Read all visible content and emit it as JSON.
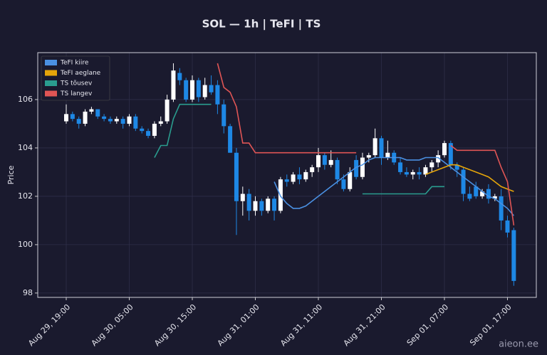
{
  "chart_data": {
    "type": "candlestick",
    "title": "SOL — 1h  |  TeFI  |  TS",
    "ylabel": "Price",
    "watermark": "aieon.ee",
    "categories": [
      "Aug 29, 19:00",
      "Aug 29, 20:00",
      "Aug 29, 21:00",
      "Aug 29, 22:00",
      "Aug 29, 23:00",
      "Aug 30, 00:00",
      "Aug 30, 01:00",
      "Aug 30, 02:00",
      "Aug 30, 03:00",
      "Aug 30, 04:00",
      "Aug 30, 05:00",
      "Aug 30, 06:00",
      "Aug 30, 07:00",
      "Aug 30, 08:00",
      "Aug 30, 09:00",
      "Aug 30, 10:00",
      "Aug 30, 11:00",
      "Aug 30, 12:00",
      "Aug 30, 13:00",
      "Aug 30, 14:00",
      "Aug 30, 15:00",
      "Aug 30, 16:00",
      "Aug 30, 17:00",
      "Aug 30, 18:00",
      "Aug 30, 19:00",
      "Aug 30, 20:00",
      "Aug 30, 21:00",
      "Aug 30, 22:00",
      "Aug 30, 23:00",
      "Aug 31, 00:00",
      "Aug 31, 01:00",
      "Aug 31, 02:00",
      "Aug 31, 03:00",
      "Aug 31, 04:00",
      "Aug 31, 05:00",
      "Aug 31, 06:00",
      "Aug 31, 07:00",
      "Aug 31, 08:00",
      "Aug 31, 09:00",
      "Aug 31, 10:00",
      "Aug 31, 11:00",
      "Aug 31, 12:00",
      "Aug 31, 13:00",
      "Aug 31, 14:00",
      "Aug 31, 15:00",
      "Aug 31, 16:00",
      "Aug 31, 17:00",
      "Aug 31, 18:00",
      "Aug 31, 19:00",
      "Aug 31, 20:00",
      "Aug 31, 21:00",
      "Aug 31, 22:00",
      "Aug 31, 23:00",
      "Sep 01, 00:00",
      "Sep 01, 01:00",
      "Sep 01, 02:00",
      "Sep 01, 03:00",
      "Sep 01, 04:00",
      "Sep 01, 05:00",
      "Sep 01, 06:00",
      "Sep 01, 07:00",
      "Sep 01, 08:00",
      "Sep 01, 09:00",
      "Sep 01, 10:00",
      "Sep 01, 11:00",
      "Sep 01, 12:00",
      "Sep 01, 13:00",
      "Sep 01, 14:00",
      "Sep 01, 15:00",
      "Sep 01, 16:00",
      "Sep 01, 17:00",
      "Sep 01, 18:00"
    ],
    "open": [
      105.1,
      105.4,
      105.2,
      105.0,
      105.5,
      105.6,
      105.3,
      105.2,
      105.1,
      105.2,
      105.0,
      105.3,
      104.8,
      104.7,
      104.5,
      105.0,
      105.1,
      106.0,
      107.1,
      106.8,
      106.0,
      106.8,
      106.1,
      106.6,
      106.6,
      105.8,
      104.9,
      103.8,
      101.8,
      102.1,
      101.4,
      101.8,
      101.4,
      101.9,
      101.4,
      102.7,
      102.6,
      102.9,
      102.7,
      103.0,
      103.2,
      103.7,
      103.3,
      103.5,
      102.7,
      102.3,
      103.5,
      102.8,
      103.6,
      103.7,
      104.4,
      103.6,
      103.8,
      103.4,
      103.0,
      102.9,
      103.0,
      102.9,
      103.2,
      103.4,
      103.7,
      104.2,
      103.3,
      103.1,
      102.1,
      102.4,
      102.0,
      102.3,
      101.9,
      102.0,
      101.0,
      100.6
    ],
    "high": [
      105.8,
      105.5,
      105.3,
      105.6,
      105.7,
      105.6,
      105.4,
      105.3,
      105.3,
      105.3,
      105.4,
      105.4,
      104.9,
      104.8,
      105.1,
      105.3,
      106.2,
      107.5,
      107.3,
      106.9,
      107.0,
      106.9,
      106.9,
      107.0,
      106.8,
      106.0,
      105.0,
      104.0,
      102.4,
      102.3,
      102.0,
      101.9,
      102.0,
      102.0,
      102.8,
      102.9,
      103.0,
      103.2,
      103.1,
      103.3,
      104.0,
      103.8,
      103.9,
      103.6,
      102.9,
      103.2,
      103.7,
      103.8,
      103.8,
      104.8,
      104.5,
      104.3,
      103.9,
      103.6,
      103.2,
      103.1,
      103.2,
      103.3,
      103.5,
      103.9,
      104.3,
      104.3,
      103.4,
      103.2,
      102.4,
      102.6,
      102.3,
      102.5,
      102.1,
      102.3,
      101.2,
      100.7
    ],
    "low": [
      105.0,
      105.1,
      104.8,
      104.9,
      105.4,
      105.2,
      105.1,
      105.0,
      105.0,
      104.8,
      104.9,
      104.7,
      104.6,
      104.4,
      104.4,
      104.9,
      105.0,
      105.9,
      106.6,
      105.9,
      105.9,
      105.9,
      106.0,
      106.2,
      105.4,
      104.6,
      103.8,
      100.4,
      101.2,
      101.0,
      101.2,
      101.2,
      101.3,
      101.0,
      101.3,
      102.4,
      102.5,
      102.5,
      102.6,
      102.8,
      103.0,
      103.1,
      103.2,
      102.5,
      102.2,
      102.2,
      102.7,
      102.7,
      103.4,
      103.6,
      103.3,
      103.5,
      103.3,
      102.9,
      102.8,
      102.7,
      102.7,
      102.8,
      103.0,
      103.2,
      103.6,
      103.1,
      102.8,
      101.8,
      101.8,
      101.9,
      101.9,
      101.7,
      101.8,
      100.6,
      100.3,
      98.3
    ],
    "close": [
      105.4,
      105.2,
      105.0,
      105.5,
      105.6,
      105.3,
      105.2,
      105.1,
      105.2,
      105.0,
      105.3,
      104.8,
      104.7,
      104.5,
      105.0,
      105.1,
      106.0,
      107.2,
      106.8,
      106.0,
      106.8,
      106.1,
      106.6,
      106.3,
      105.8,
      104.9,
      103.8,
      101.8,
      102.1,
      101.4,
      101.8,
      101.4,
      101.9,
      101.4,
      102.7,
      102.6,
      102.9,
      102.7,
      103.0,
      103.2,
      103.7,
      103.3,
      103.5,
      102.7,
      102.3,
      103.0,
      102.8,
      103.6,
      103.7,
      104.4,
      103.6,
      103.8,
      103.4,
      103.0,
      102.9,
      103.0,
      102.9,
      103.2,
      103.4,
      103.7,
      104.2,
      103.3,
      103.1,
      102.1,
      101.9,
      102.0,
      102.2,
      101.9,
      102.0,
      101.0,
      100.5,
      98.5
    ],
    "up_color": "#ffffff",
    "down_color": "#1e88e5",
    "series": [
      {
        "name": "TeFI kiire",
        "color": "#4a90e2",
        "values": [
          null,
          null,
          null,
          null,
          null,
          null,
          null,
          null,
          null,
          null,
          null,
          null,
          null,
          null,
          null,
          null,
          null,
          null,
          null,
          null,
          null,
          null,
          null,
          null,
          null,
          null,
          null,
          null,
          null,
          null,
          null,
          null,
          null,
          102.6,
          102.0,
          101.7,
          101.5,
          101.5,
          101.6,
          101.8,
          102.0,
          102.2,
          102.4,
          102.6,
          102.8,
          103.0,
          103.2,
          103.3,
          103.5,
          103.6,
          103.6,
          103.6,
          103.6,
          103.6,
          103.5,
          103.5,
          103.5,
          103.6,
          103.6,
          103.6,
          103.4,
          103.2,
          103.0,
          102.8,
          102.6,
          102.4,
          102.2,
          102.0,
          101.9,
          101.7,
          101.5,
          101.2
        ]
      },
      {
        "name": "TeFI aeglane",
        "color": "#e5a50a",
        "values": [
          null,
          null,
          null,
          null,
          null,
          null,
          null,
          null,
          null,
          null,
          null,
          null,
          null,
          null,
          null,
          null,
          null,
          null,
          null,
          null,
          null,
          null,
          null,
          null,
          null,
          null,
          null,
          null,
          null,
          null,
          null,
          null,
          null,
          null,
          null,
          null,
          null,
          null,
          null,
          null,
          null,
          null,
          null,
          null,
          null,
          null,
          null,
          null,
          null,
          null,
          null,
          null,
          null,
          null,
          null,
          null,
          null,
          102.9,
          103.0,
          103.1,
          103.2,
          103.3,
          103.3,
          103.2,
          103.1,
          103.0,
          102.9,
          102.8,
          102.6,
          102.4,
          102.3,
          102.2
        ]
      },
      {
        "name": "TS tõusev",
        "color": "#2a9d8f",
        "values": [
          null,
          null,
          null,
          null,
          null,
          null,
          null,
          null,
          null,
          null,
          null,
          null,
          null,
          null,
          103.6,
          104.1,
          104.1,
          105.2,
          105.8,
          105.8,
          105.8,
          105.8,
          105.8,
          105.8,
          null,
          null,
          null,
          null,
          null,
          null,
          null,
          null,
          null,
          null,
          null,
          null,
          null,
          null,
          null,
          null,
          null,
          null,
          null,
          null,
          null,
          null,
          null,
          102.1,
          102.1,
          102.1,
          102.1,
          102.1,
          102.1,
          102.1,
          102.1,
          102.1,
          102.1,
          102.1,
          102.4,
          102.4,
          102.4,
          null,
          null,
          null,
          null,
          null,
          null,
          null,
          null,
          null,
          null,
          null
        ]
      },
      {
        "name": "TS langev",
        "color": "#e05555",
        "values": [
          null,
          null,
          null,
          null,
          null,
          null,
          null,
          null,
          null,
          null,
          null,
          null,
          null,
          null,
          null,
          null,
          null,
          null,
          null,
          null,
          null,
          null,
          null,
          null,
          107.5,
          106.5,
          106.3,
          105.7,
          104.2,
          104.2,
          103.8,
          103.8,
          103.8,
          103.8,
          103.8,
          103.8,
          103.8,
          103.8,
          103.8,
          103.8,
          103.8,
          103.8,
          103.8,
          103.8,
          103.8,
          103.8,
          103.8,
          null,
          null,
          null,
          null,
          null,
          null,
          null,
          null,
          null,
          null,
          null,
          null,
          null,
          null,
          104.1,
          103.9,
          103.9,
          103.9,
          103.9,
          103.9,
          103.9,
          103.9,
          103.2,
          102.6,
          100.8
        ]
      }
    ],
    "ylim": [
      97.82,
      107.94
    ],
    "yticks": [
      98,
      100,
      102,
      104,
      106
    ],
    "xticks": [
      "Aug 29, 19:00",
      "Aug 30, 05:00",
      "Aug 30, 15:00",
      "Aug 31, 01:00",
      "Aug 31, 11:00",
      "Aug 31, 21:00",
      "Sep 01, 07:00",
      "Sep 01, 17:00"
    ],
    "grid": true,
    "legend": "upper left"
  }
}
